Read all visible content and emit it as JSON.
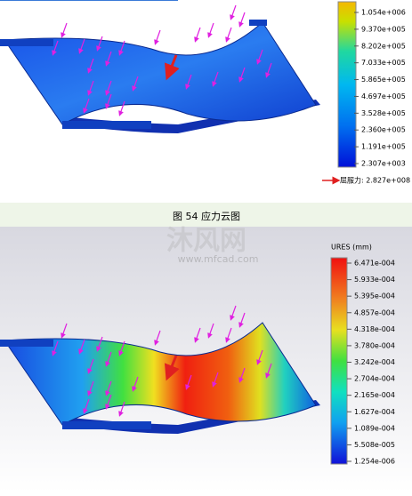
{
  "stress_panel": {
    "scale_labels": [
      "1.054e+006",
      "9.370e+005",
      "8.202e+005",
      "7.033e+005",
      "5.865e+005",
      "4.697e+005",
      "3.528e+005",
      "2.360e+005",
      "1.191e+005",
      "2.307e+003"
    ],
    "yield_label": "屈服力: 2.827e+008"
  },
  "caption": "图 54 应力云图",
  "watermark": {
    "brand": "沐风网",
    "url": "www.mfcad.com"
  },
  "displacement_panel": {
    "title": "URES (mm)",
    "scale_labels": [
      "6.471e-004",
      "5.933e-004",
      "5.395e-004",
      "4.857e-004",
      "4.318e-004",
      "3.780e-004",
      "3.242e-004",
      "2.704e-004",
      "2.165e-004",
      "1.627e-004",
      "1.089e-004",
      "5.508e-005",
      "1.254e-006"
    ]
  }
}
